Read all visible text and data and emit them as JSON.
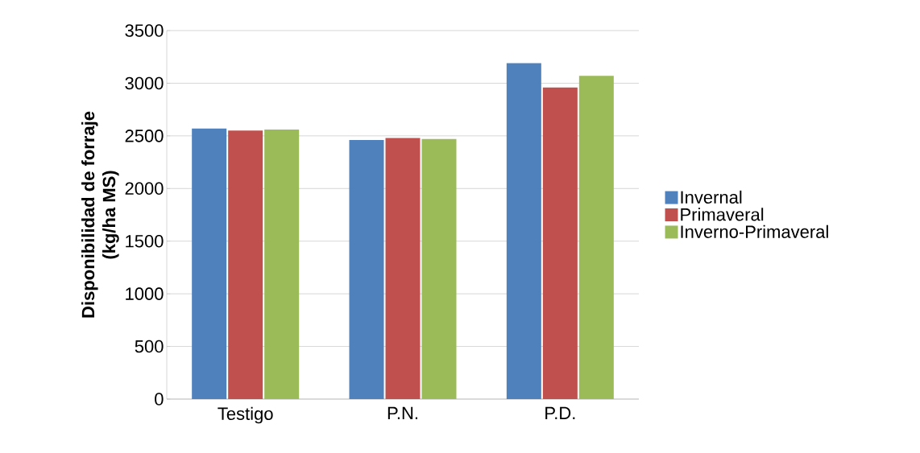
{
  "chart_data": {
    "type": "bar",
    "ylabel": "Disponibilidad de forraje\n(kg/ha MS)",
    "categories": [
      "Testigo",
      "P.N.",
      "P.D."
    ],
    "series": [
      {
        "name": "Invernal",
        "color": "#4f81bd",
        "values": [
          2570,
          2460,
          3190
        ]
      },
      {
        "name": "Primaveral",
        "color": "#c0504d",
        "values": [
          2550,
          2480,
          2960
        ]
      },
      {
        "name": "Inverno-Primaveral",
        "color": "#9bbb59",
        "values": [
          2560,
          2470,
          3070
        ]
      }
    ],
    "ylim": [
      0,
      3500
    ],
    "yticks": [
      0,
      500,
      1000,
      1500,
      2000,
      2500,
      3000,
      3500
    ],
    "grid": "y",
    "legend": "right"
  }
}
